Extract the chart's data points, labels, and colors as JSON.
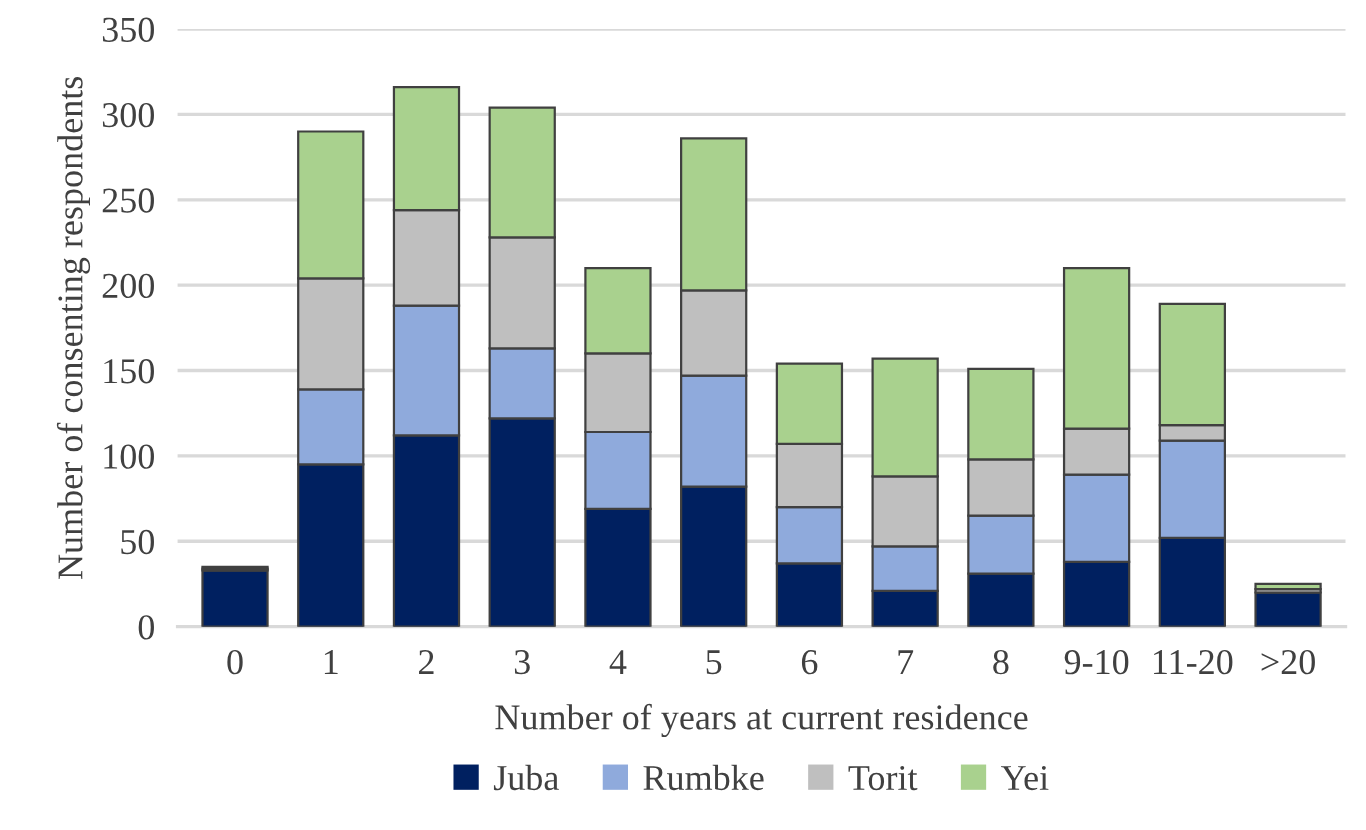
{
  "chart_data": {
    "type": "bar",
    "stacked": true,
    "xlabel": "Number of years at current residence",
    "ylabel": "Number of consenting respondents",
    "categories": [
      "0",
      "1",
      "2",
      "3",
      "4",
      "5",
      "6",
      "7",
      "8",
      "9-10",
      "11-20",
      ">20"
    ],
    "series": [
      {
        "name": "Juba",
        "color": "#002060",
        "values": [
          33,
          95,
          112,
          122,
          69,
          82,
          37,
          21,
          31,
          38,
          52,
          20
        ]
      },
      {
        "name": "Rumbke",
        "color": "#8faadc",
        "values": [
          0,
          44,
          76,
          41,
          45,
          65,
          33,
          26,
          34,
          51,
          57,
          0
        ]
      },
      {
        "name": "Torit",
        "color": "#bfbfbf",
        "values": [
          1,
          65,
          56,
          65,
          46,
          50,
          37,
          41,
          33,
          27,
          9,
          2
        ]
      },
      {
        "name": "Yei",
        "color": "#a9d18e",
        "values": [
          1,
          86,
          72,
          76,
          50,
          89,
          47,
          69,
          53,
          94,
          71,
          3
        ]
      }
    ],
    "ylim": [
      0,
      350
    ],
    "yticks": [
      0,
      50,
      100,
      150,
      200,
      250,
      300,
      350
    ],
    "grid": "y",
    "legend": "bottom"
  }
}
